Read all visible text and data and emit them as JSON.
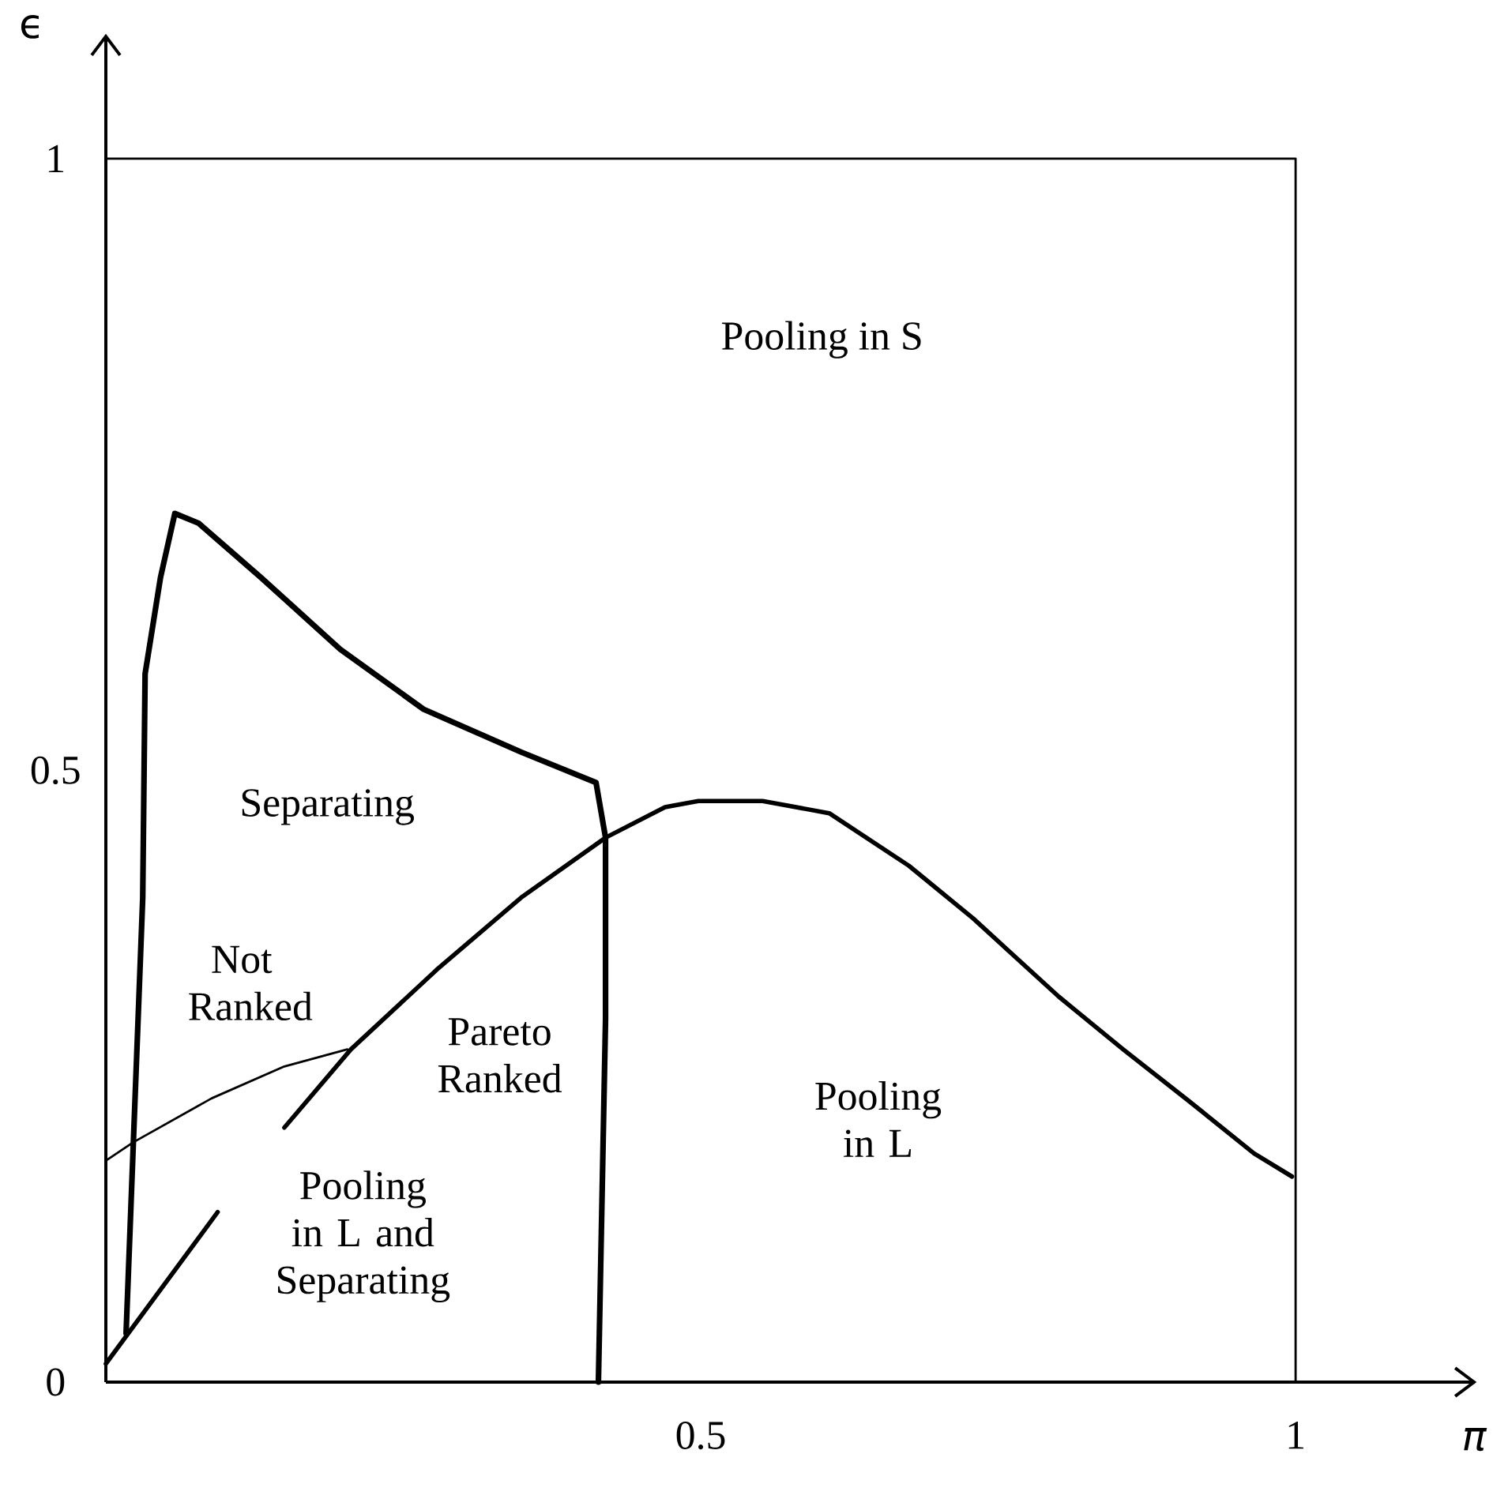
{
  "chart_data": {
    "type": "line",
    "xlabel": "π",
    "ylabel": "ϵ",
    "xlim": [
      0,
      1.15
    ],
    "ylim": [
      0,
      1.1
    ],
    "xticks": [
      0.5,
      1
    ],
    "yticks": [
      {
        "value": 0,
        "label": "0"
      },
      0.5,
      1
    ],
    "grid": false,
    "series": [
      {
        "color": "#000000",
        "x": [
          0.017,
          0.031,
          0.033,
          0.046,
          0.058,
          0.078,
          0.13,
          0.197,
          0.267,
          0.349,
          0.412,
          0.42,
          0.42,
          0.414
        ],
        "values": [
          0.04,
          0.396,
          0.579,
          0.658,
          0.71,
          0.702,
          0.658,
          0.599,
          0.55,
          0.515,
          0.49,
          0.445,
          0.297,
          0
        ]
      },
      {
        "color": "#000000",
        "x": [
          0,
          0.094,
          0.12,
          0.15,
          0.206,
          0.278,
          0.349,
          0.42,
          0.47,
          0.498,
          0.552,
          0.608,
          0.675,
          0.729,
          0.801,
          0.855,
          0.91,
          0.965,
          0.997
        ],
        "values": [
          0.015,
          0.139,
          null,
          0.208,
          0.272,
          0.337,
          0.396,
          0.445,
          0.47,
          0.475,
          0.475,
          0.465,
          0.422,
          0.379,
          0.315,
          0.272,
          0.23,
          0.187,
          0.168
        ]
      },
      {
        "color": "#000000",
        "x": [
          0,
          0.023,
          0.089,
          0.15,
          0.203
        ],
        "values": [
          0.181,
          0.196,
          0.232,
          0.258,
          0.272
        ]
      },
      {
        "color": "#000000",
        "x": [
          0,
          1,
          1
        ],
        "values": [
          1,
          1,
          0
        ]
      }
    ],
    "annotations": [
      "Pooling in S",
      "Separating",
      "Not Ranked",
      "Pareto Ranked",
      "Pooling in L and Separating",
      "Pooling in L"
    ]
  }
}
